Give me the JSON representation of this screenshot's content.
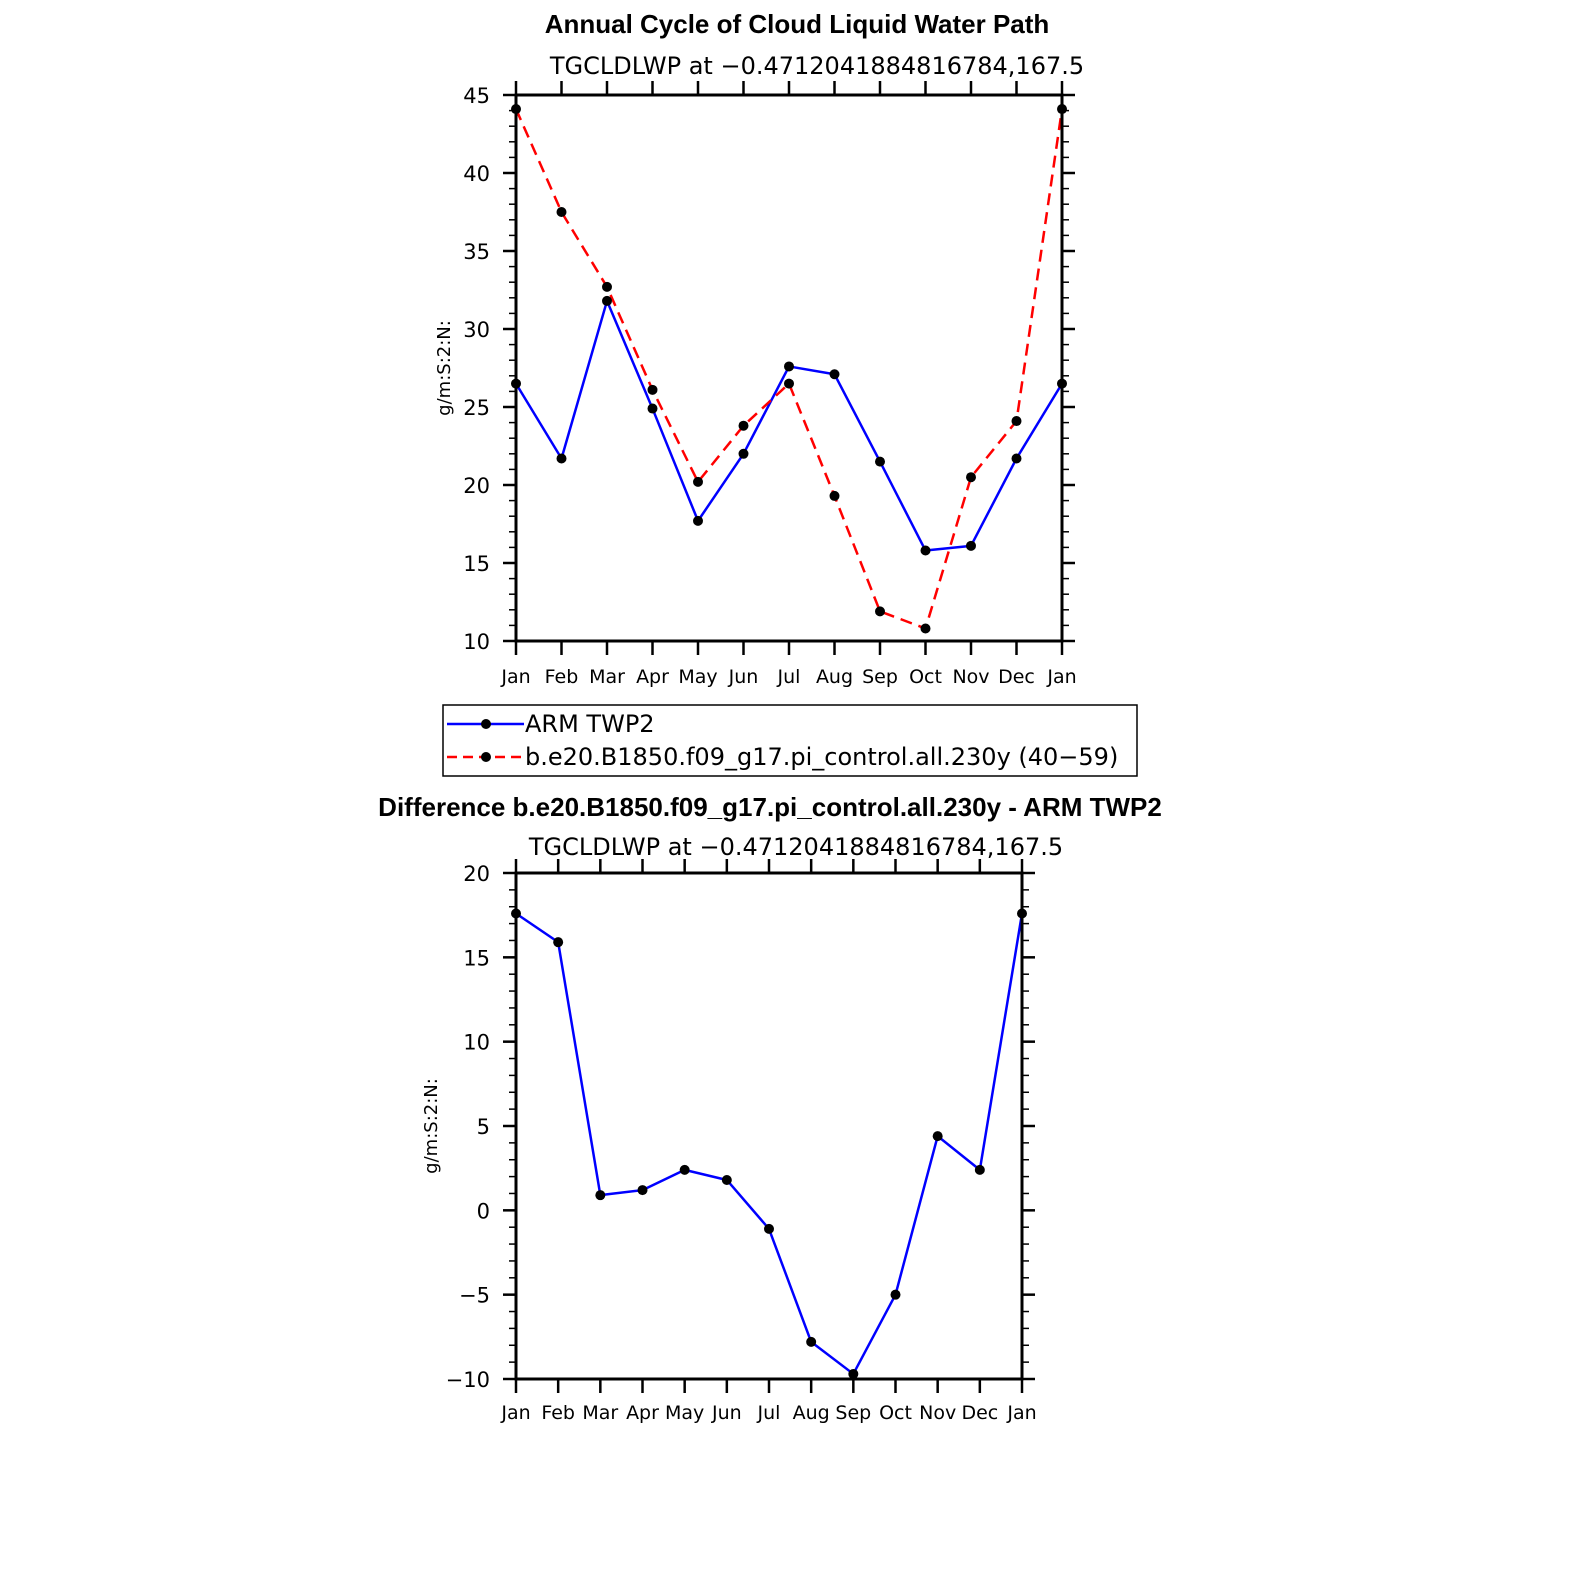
{
  "chart_data": [
    {
      "type": "line",
      "title": "Annual Cycle of Cloud Liquid Water Path",
      "subtitle": "TGCLDLWP at −0.4712041884816784,167.5",
      "ylabel": "g/m:S:2:N:",
      "xlabel": "",
      "categories": [
        "Jan",
        "Feb",
        "Mar",
        "Apr",
        "May",
        "Jun",
        "Jul",
        "Aug",
        "Sep",
        "Oct",
        "Nov",
        "Dec",
        "Jan"
      ],
      "ylim": [
        10,
        45
      ],
      "yticks": [
        10,
        15,
        20,
        25,
        30,
        35,
        40,
        45
      ],
      "ytick_labels": [
        "10",
        "15",
        "20",
        "25",
        "30",
        "35",
        "40",
        "45"
      ],
      "grid": false,
      "series": [
        {
          "name": "ARM TWP2",
          "color": "#0000ff",
          "dash": "solid",
          "values": [
            26.5,
            21.7,
            31.8,
            24.9,
            17.7,
            22.0,
            27.6,
            27.1,
            21.5,
            15.8,
            16.1,
            21.7,
            26.5
          ]
        },
        {
          "name": "b.e20.B1850.f09_g17.pi_control.all.230y (40−59)",
          "color": "#ff0000",
          "dash": "dashed",
          "values": [
            44.1,
            37.5,
            32.7,
            26.1,
            20.2,
            23.8,
            26.5,
            19.3,
            11.9,
            10.8,
            20.5,
            24.1,
            44.1
          ]
        }
      ],
      "legend": "below"
    },
    {
      "type": "line",
      "title": "Difference b.e20.B1850.f09_g17.pi_control.all.230y - ARM TWP2",
      "subtitle": "TGCLDLWP at −0.4712041884816784,167.5",
      "ylabel": "g/m:S:2:N:",
      "xlabel": "",
      "categories": [
        "Jan",
        "Feb",
        "Mar",
        "Apr",
        "May",
        "Jun",
        "Jul",
        "Aug",
        "Sep",
        "Oct",
        "Nov",
        "Dec",
        "Jan"
      ],
      "ylim": [
        -10,
        20
      ],
      "yticks": [
        -10,
        -5,
        0,
        5,
        10,
        15,
        20
      ],
      "ytick_labels": [
        "−10",
        "−5",
        "0",
        "5",
        "10",
        "15",
        "20"
      ],
      "grid": false,
      "series": [
        {
          "color": "#0000ff",
          "dash": "solid",
          "values": [
            17.6,
            15.9,
            0.9,
            1.2,
            2.4,
            1.8,
            -1.1,
            -7.8,
            -9.7,
            -5.0,
            4.4,
            2.4,
            17.6
          ]
        }
      ]
    }
  ]
}
